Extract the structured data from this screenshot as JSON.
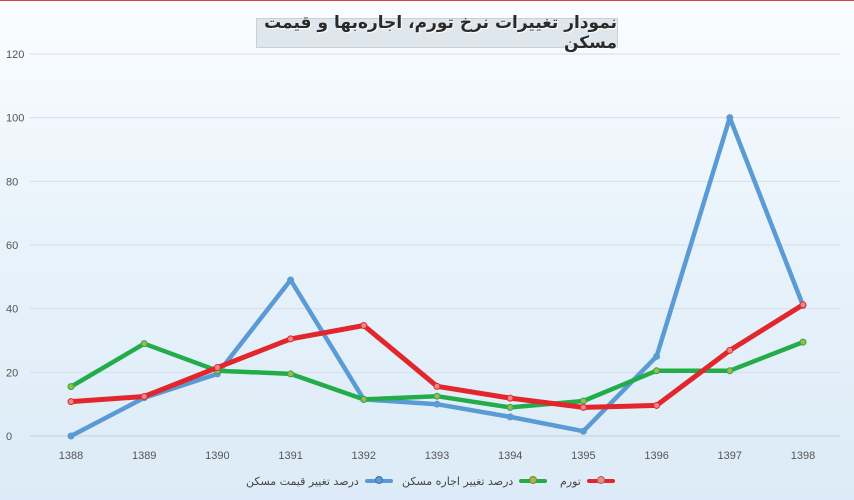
{
  "chart_data": {
    "type": "line",
    "title": "نمودار تغییرات نرخ تورم، اجاره‌بها و قیمت مسکن",
    "categories": [
      "1388",
      "1389",
      "1390",
      "1391",
      "1392",
      "1393",
      "1394",
      "1395",
      "1396",
      "1397",
      "1398"
    ],
    "ylim": [
      0,
      120
    ],
    "yticks": [
      0,
      20,
      40,
      60,
      80,
      100,
      120
    ],
    "grid": true,
    "legend_position": "bottom",
    "series": [
      {
        "name": "درصد تغییر قیمت مسکن",
        "color": "#5b9bd5",
        "marker_color": "#5b9bd5",
        "values": [
          0,
          12,
          19.5,
          49,
          11.5,
          10,
          6,
          1.5,
          25,
          100,
          41
        ]
      },
      {
        "name": "درصد تغییر اجاره مسکن",
        "color": "#22ad4a",
        "marker_color": "#a9b34a",
        "values": [
          15.5,
          29,
          20.5,
          19.5,
          11.5,
          12.5,
          9,
          11,
          20.5,
          20.5,
          29.5
        ]
      },
      {
        "name": "تورم",
        "color": "#e3262c",
        "marker_color": "#e98a8d",
        "values": [
          10.8,
          12.4,
          21.5,
          30.5,
          34.7,
          15.6,
          11.9,
          9,
          9.6,
          26.9,
          41.2
        ]
      }
    ]
  }
}
